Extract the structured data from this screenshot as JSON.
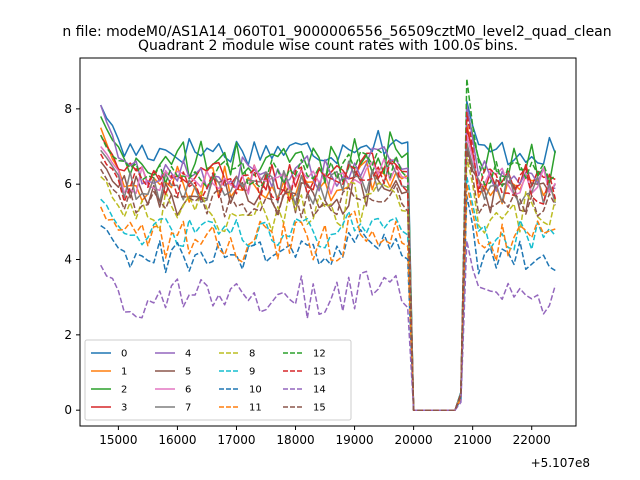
{
  "figure_title": "n file: modeM0/AS1A14_060T01_9000006556_56509cztM0_level2_quad_clean",
  "chart_data": {
    "type": "line",
    "title": "Quadrant 2 module wise count rates with 100.0s bins.",
    "xlabel": "",
    "ylabel": "",
    "x_offset_label": "+5.107e8",
    "xlim": [
      14350,
      22750
    ],
    "ylim": [
      -0.42,
      9.35
    ],
    "xticks": [
      15000,
      16000,
      17000,
      18000,
      19000,
      20000,
      21000,
      22000
    ],
    "yticks": [
      0,
      2,
      4,
      6,
      8
    ],
    "grid": false,
    "legend": {
      "placement": "lower-left",
      "columns": 4
    },
    "x_start": 14700,
    "x_step": 100,
    "n_points": 78,
    "gap": {
      "drop_x": 20000,
      "zero_until": 20700,
      "recover_x": 20800,
      "peak_x": 20900
    },
    "series": [
      {
        "name": "0",
        "color": "#1f77b4",
        "dash": "solid",
        "base": 6.9,
        "start": 8.1,
        "peak": 8.2
      },
      {
        "name": "1",
        "color": "#ff7f0e",
        "dash": "solid",
        "base": 6.0,
        "start": 7.5,
        "peak": 7.6
      },
      {
        "name": "2",
        "color": "#2ca02c",
        "dash": "solid",
        "base": 6.6,
        "start": 7.8,
        "peak": 8.0
      },
      {
        "name": "3",
        "color": "#d62728",
        "dash": "solid",
        "base": 6.2,
        "start": 7.3,
        "peak": 7.5
      },
      {
        "name": "4",
        "color": "#9467bd",
        "dash": "solid",
        "base": 6.3,
        "start": 8.1,
        "peak": 8.1
      },
      {
        "name": "5",
        "color": "#8c564b",
        "dash": "solid",
        "base": 5.7,
        "start": 6.6,
        "peak": 7.0
      },
      {
        "name": "6",
        "color": "#e377c2",
        "dash": "solid",
        "base": 6.1,
        "start": 7.0,
        "peak": 7.3
      },
      {
        "name": "7",
        "color": "#7f7f7f",
        "dash": "solid",
        "base": 5.9,
        "start": 6.9,
        "peak": 7.1
      },
      {
        "name": "8",
        "color": "#bcbd22",
        "dash": "dashed",
        "base": 5.3,
        "start": 6.2,
        "peak": 6.7
      },
      {
        "name": "9",
        "color": "#17becf",
        "dash": "dashed",
        "base": 4.7,
        "start": 5.6,
        "peak": 6.2
      },
      {
        "name": "10",
        "color": "#1f77b4",
        "dash": "dashed",
        "base": 4.1,
        "start": 4.9,
        "peak": 5.7
      },
      {
        "name": "11",
        "color": "#ff7f0e",
        "dash": "dashed",
        "base": 4.5,
        "start": 5.4,
        "peak": 6.0
      },
      {
        "name": "12",
        "color": "#2ca02c",
        "dash": "dashed",
        "base": 6.3,
        "start": 7.3,
        "peak": 8.8
      },
      {
        "name": "13",
        "color": "#d62728",
        "dash": "dashed",
        "base": 6.0,
        "start": 6.8,
        "peak": 7.9
      },
      {
        "name": "14",
        "color": "#9467bd",
        "dash": "dashed",
        "base": 3.0,
        "start": 3.85,
        "peak": 4.5
      },
      {
        "name": "15",
        "color": "#8c564b",
        "dash": "dashed",
        "base": 5.5,
        "start": 6.4,
        "peak": 6.9
      }
    ]
  }
}
